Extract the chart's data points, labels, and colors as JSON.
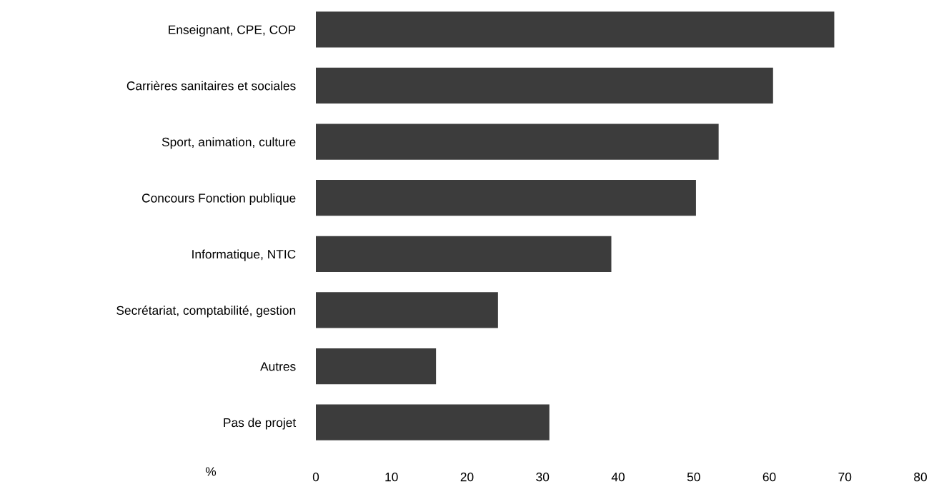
{
  "chart_data": {
    "type": "bar",
    "orientation": "horizontal",
    "categories": [
      "Enseignant, CPE, COP",
      "Carrières sanitaires et sociales",
      "Sport, animation, culture",
      "Concours Fonction publique",
      "Informatique, NTIC",
      "Secrétariat, comptabilité, gestion",
      "Autres",
      "Pas de projet"
    ],
    "values": [
      68.6,
      60.5,
      53.3,
      50.3,
      39.1,
      24.1,
      15.9,
      30.9
    ],
    "color": "#3c3c3c",
    "xlabel": "%",
    "xlim": [
      0,
      80
    ],
    "xticks": [
      0,
      10,
      20,
      30,
      40,
      50,
      60,
      70,
      80
    ],
    "grid": false,
    "legend": false
  }
}
